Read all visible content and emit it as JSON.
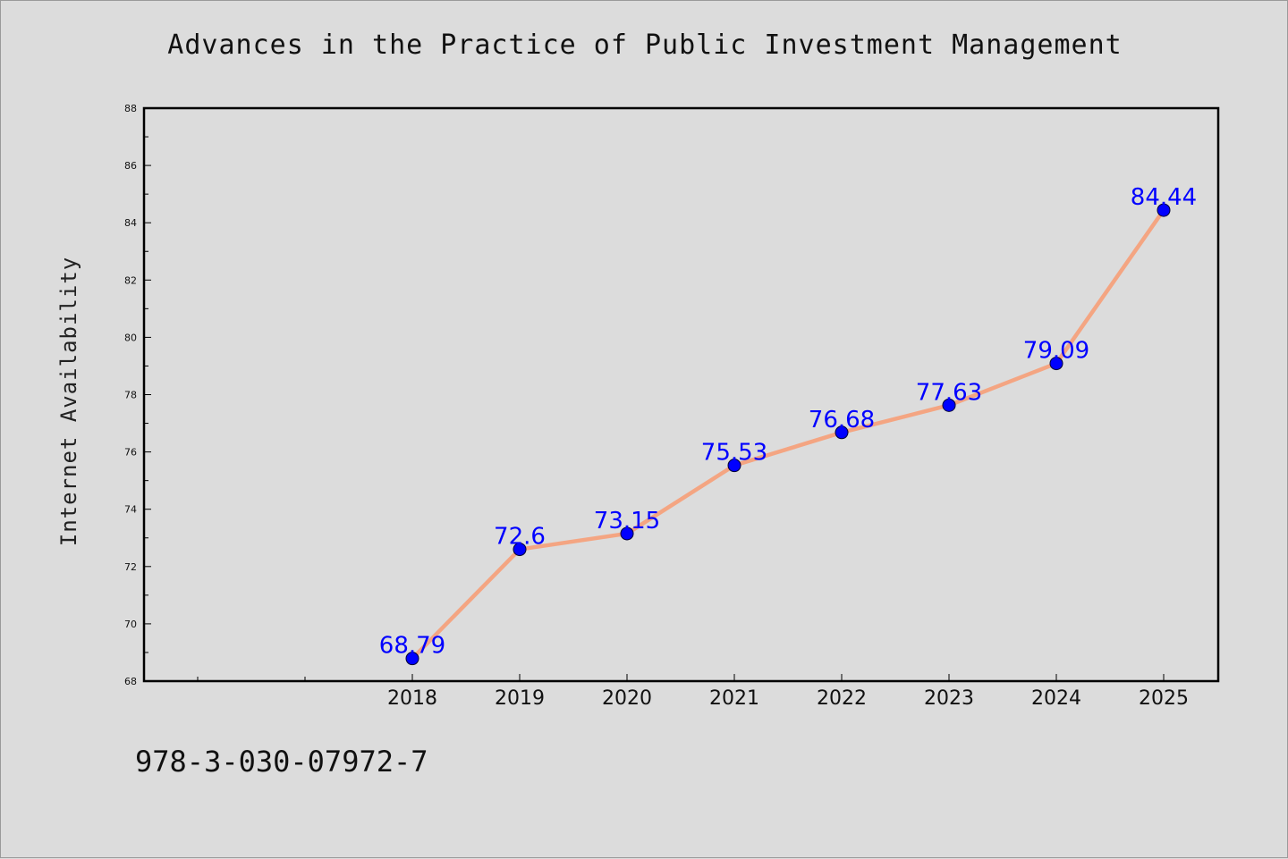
{
  "chart_data": {
    "type": "line",
    "title": "Advances in the Practice of Public Investment Management",
    "ylabel": "Internet Availability",
    "xlabel": "",
    "categories": [
      "2018",
      "2019",
      "2020",
      "2021",
      "2022",
      "2023",
      "2024",
      "2025"
    ],
    "series": [
      {
        "values": [
          68.79,
          72.6,
          73.15,
          75.53,
          76.68,
          77.63,
          79.09,
          84.44
        ],
        "labels": [
          "68.79",
          "72.6",
          "73.15",
          "75.53",
          "76.68",
          "77.63",
          "79.09",
          "84.44"
        ]
      }
    ],
    "ylim": [
      68,
      88
    ],
    "yticks": [
      "68",
      "70",
      "72",
      "74",
      "76",
      "78",
      "80",
      "82",
      "84",
      "86",
      "88"
    ],
    "grid": false,
    "line_color": "#f4a582",
    "marker_color": "#0000ff",
    "label_color": "#0000ff"
  },
  "footer": {
    "isbn": "978-3-030-07972-7"
  }
}
